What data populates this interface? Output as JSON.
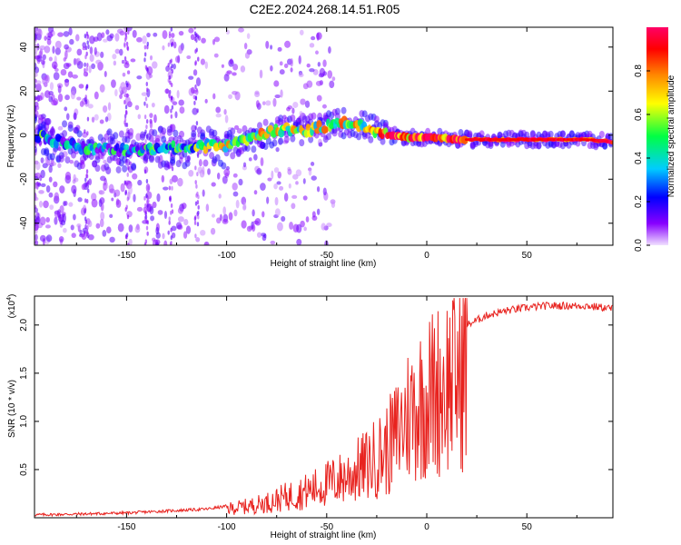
{
  "title": "C2E2.2024.268.14.51.R05",
  "chart_data": [
    {
      "type": "heatmap",
      "xlabel": "Height of straight line (km)",
      "ylabel": "Frequency (Hz)",
      "xlim": [
        -196,
        93
      ],
      "ylim": [
        -50,
        49
      ],
      "xticks": [
        -150,
        -100,
        -50,
        0,
        50
      ],
      "yticks": [
        -40,
        -20,
        0,
        20,
        40
      ],
      "grid": false,
      "colorbar": {
        "label": "Normalized spectral amplitude",
        "range": [
          0.0,
          1.0
        ],
        "ticks": [
          "0.0",
          "0.2",
          "0.4",
          "0.6",
          "0.8"
        ],
        "colormap": [
          "#f0e0ff",
          "#8800ff",
          "#0000ff",
          "#00ccff",
          "#00ff44",
          "#ffff00",
          "#ff8800",
          "#ff0000",
          "#ff0066"
        ]
      },
      "ridge": {
        "x": [
          -196,
          -170,
          -150,
          -130,
          -115,
          -100,
          -90,
          -80,
          -70,
          -60,
          -50,
          -40,
          -30,
          -25,
          -20,
          -10,
          0,
          20,
          40,
          60,
          80,
          93
        ],
        "y": [
          0,
          -6,
          -7,
          -6,
          -5,
          -5,
          -2,
          1,
          3,
          2,
          4,
          6,
          4,
          2,
          0,
          -1,
          -1,
          -2,
          -2,
          -2,
          -2,
          -3
        ],
        "amplitude": [
          0.35,
          0.3,
          0.3,
          0.35,
          0.45,
          0.55,
          0.55,
          0.6,
          0.6,
          0.55,
          0.6,
          0.6,
          0.55,
          0.7,
          0.75,
          0.8,
          0.85,
          0.9,
          0.95,
          0.95,
          0.95,
          0.9
        ]
      }
    },
    {
      "type": "line",
      "xlabel": "Height of straight line (km)",
      "ylabel": "SNR (10 * v/v)",
      "yunit": "(x10",
      "yunit_exp": "4",
      "yunit_close": ")",
      "xlim": [
        -196,
        93
      ],
      "ylim": [
        0,
        2.3
      ],
      "xticks": [
        -150,
        -100,
        -50,
        0,
        50
      ],
      "yticks": [
        0.5,
        1.0,
        1.5,
        2.0
      ],
      "color": "#e8231f",
      "envelope": {
        "x": [
          -196,
          -170,
          -150,
          -130,
          -110,
          -100,
          -90,
          -80,
          -70,
          -60,
          -50,
          -40,
          -30,
          -20,
          -15,
          -10,
          -5,
          0,
          5,
          10,
          15,
          20,
          30,
          40,
          50,
          60,
          70,
          80,
          93
        ],
        "y": [
          0.03,
          0.04,
          0.05,
          0.07,
          0.09,
          0.12,
          0.15,
          0.2,
          0.28,
          0.35,
          0.45,
          0.55,
          0.7,
          0.9,
          1.1,
          1.35,
          1.5,
          1.6,
          1.7,
          1.8,
          1.9,
          2.0,
          2.1,
          2.15,
          2.18,
          2.2,
          2.2,
          2.2,
          2.17
        ]
      }
    }
  ]
}
